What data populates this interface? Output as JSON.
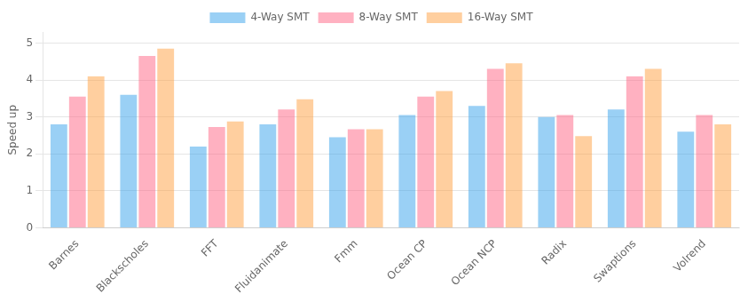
{
  "chart_data": {
    "type": "bar",
    "categories": [
      "Barnes",
      "Blackscholes",
      "FFT",
      "Fluidanimate",
      "Fmm",
      "Ocean CP",
      "Ocean NCP",
      "Radix",
      "Swaptions",
      "Volrend"
    ],
    "series": [
      {
        "name": "4-Way SMT",
        "values": [
          2.8,
          3.6,
          2.2,
          2.8,
          2.45,
          3.05,
          3.3,
          3.0,
          3.2,
          2.6
        ]
      },
      {
        "name": "8-Way SMT",
        "values": [
          3.55,
          4.65,
          2.73,
          3.2,
          2.67,
          3.55,
          4.3,
          3.05,
          4.1,
          3.05
        ]
      },
      {
        "name": "16-Way SMT",
        "values": [
          4.1,
          4.85,
          2.88,
          3.48,
          2.67,
          3.7,
          4.45,
          2.48,
          4.3,
          2.8
        ]
      }
    ],
    "ylabel": "Speed up",
    "ylim": [
      0,
      5.3
    ],
    "yticks": [
      0,
      1,
      2,
      3,
      4,
      5
    ],
    "grid": true,
    "legend": "top"
  }
}
